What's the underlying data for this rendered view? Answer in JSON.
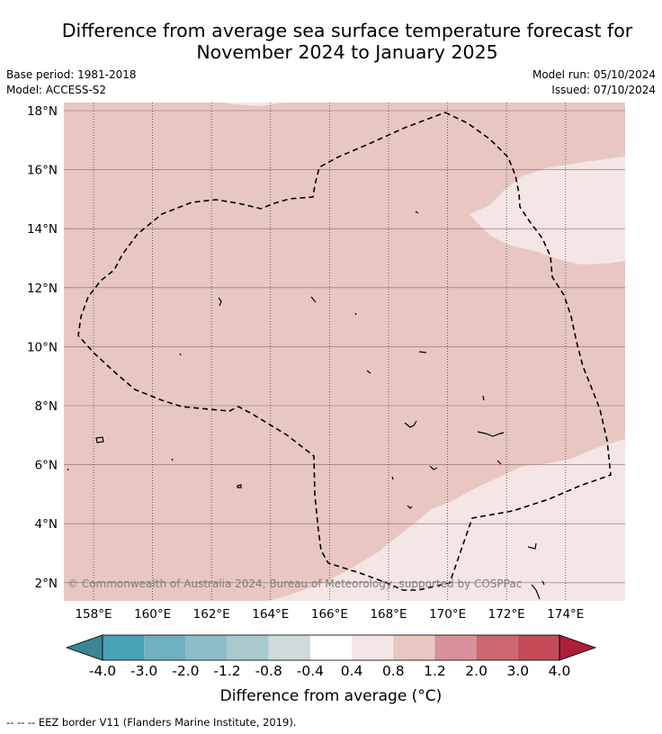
{
  "title_line1": "Difference from average sea surface temperature forecast for",
  "title_line2": "November 2024 to January 2025",
  "base_period": "Base period: 1981-2018",
  "model": "Model: ACCESS-S2",
  "model_run": "Model run: 05/10/2024",
  "issued": "Issued: 07/10/2024",
  "copyright": "© Commonwealth of Australia 2024, Bureau of Meteorology, supported by COSPPac",
  "footnote": "--  --  -- EEZ border V11 (Flanders Marine Institute, 2019).",
  "lat_labels": [
    "18°N",
    "16°N",
    "14°N",
    "12°N",
    "10°N",
    "8°N",
    "6°N",
    "4°N",
    "2°N"
  ],
  "lon_labels": [
    "158°E",
    "160°E",
    "162°E",
    "164°E",
    "166°E",
    "168°E",
    "170°E",
    "172°E",
    "174°E"
  ],
  "colorbar": {
    "label": "Difference from average (°C)",
    "ticks": [
      "-4.0",
      "-3.0",
      "-2.0",
      "-1.2",
      "-0.8",
      "-0.4",
      "0.4",
      "0.8",
      "1.2",
      "2.0",
      "3.0",
      "4.0"
    ],
    "colors": [
      "#3b8594",
      "#48a2b6",
      "#6fb1c1",
      "#8ebcc7",
      "#a9c9cc",
      "#cfdadd",
      "#ffffff",
      "#f4e6e4",
      "#e8c7c2",
      "#d8909a",
      "#cc6671",
      "#c44a58",
      "#ad1e3b"
    ]
  },
  "colors": {
    "map_main": "#e8c7c2",
    "map_light": "#f4e6e4"
  }
}
